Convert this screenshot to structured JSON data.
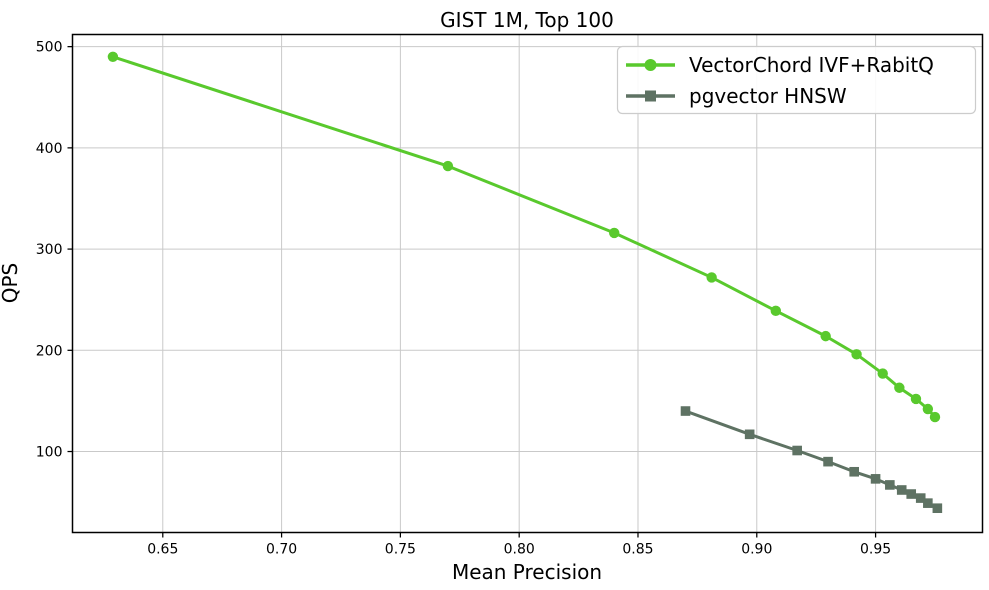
{
  "chart_data": {
    "type": "line",
    "title": "GIST 1M, Top 100",
    "xlabel": "Mean Precision",
    "ylabel": "QPS",
    "xlim": [
      0.612,
      0.995
    ],
    "ylim": [
      20,
      512
    ],
    "xticks": [
      0.65,
      0.7,
      0.75,
      0.8,
      0.85,
      0.9,
      0.95
    ],
    "xtick_labels": [
      "0.65",
      "0.70",
      "0.75",
      "0.80",
      "0.85",
      "0.90",
      "0.95"
    ],
    "yticks": [
      100,
      200,
      300,
      400,
      500
    ],
    "ytick_labels": [
      "100",
      "200",
      "300",
      "400",
      "500"
    ],
    "grid": true,
    "legend_position": "upper-right",
    "series": [
      {
        "name": "VectorChord IVF+RabitQ",
        "color": "#59c92d",
        "marker": "circle",
        "x": [
          0.629,
          0.77,
          0.84,
          0.881,
          0.908,
          0.929,
          0.942,
          0.953,
          0.96,
          0.967,
          0.972,
          0.975
        ],
        "y": [
          490,
          382,
          316,
          272,
          239,
          214,
          196,
          177,
          163,
          152,
          142,
          134
        ]
      },
      {
        "name": "pgvector HNSW",
        "color": "#5e7263",
        "marker": "square",
        "x": [
          0.87,
          0.897,
          0.917,
          0.93,
          0.941,
          0.95,
          0.956,
          0.961,
          0.965,
          0.969,
          0.972,
          0.976
        ],
        "y": [
          140,
          117,
          101,
          90,
          80,
          73,
          67,
          62,
          58,
          54,
          49,
          44
        ]
      }
    ],
    "styles": {
      "grid_color": "#c9c9c9",
      "spine_color": "#000000",
      "tick_color": "#000000",
      "background": "#ffffff",
      "legend_border": "#cccccc",
      "text_color": "#000000"
    }
  }
}
